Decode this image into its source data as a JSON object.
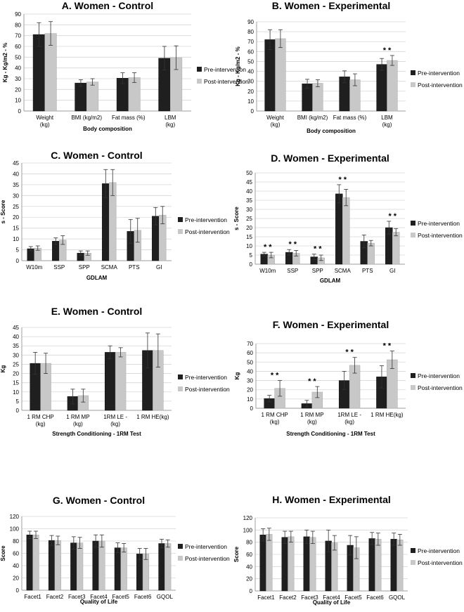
{
  "figure": {
    "series_names": [
      "Pre-intervention",
      "Post-intervention"
    ],
    "series_colors": [
      "#1f1f1f",
      "#c8c8c8"
    ]
  },
  "chart_data": [
    {
      "id": "A",
      "type": "bar",
      "title": "A. Women - Control",
      "xlabel": "Body composition",
      "ylabel": "Kg - Kg/m2 - %",
      "ylim": [
        0,
        90
      ],
      "ystep": 10,
      "categories": [
        "Weight (kg)",
        "BMI (kg/m2)",
        "Fat mass (%)",
        "LBM (kg)"
      ],
      "series": [
        {
          "name": "Pre-intervention",
          "values": [
            71,
            26,
            30.5,
            49
          ],
          "errors": [
            11,
            3,
            5,
            11
          ]
        },
        {
          "name": "Post-intervention",
          "values": [
            72,
            27,
            31,
            49.5
          ],
          "errors": [
            11,
            3,
            4.5,
            11
          ]
        }
      ],
      "annotations": []
    },
    {
      "id": "B",
      "type": "bar",
      "title": "B. Women - Experimental",
      "xlabel": "Body composition",
      "ylabel": "Kg - Kg/m2 - %",
      "ylim": [
        0,
        90
      ],
      "ystep": 10,
      "categories": [
        "Weight (kg)",
        "BMI (kg/m2)",
        "Fat mass (%)",
        "LBM (kg)"
      ],
      "series": [
        {
          "name": "Pre-intervention",
          "values": [
            72,
            27.5,
            34.5,
            47
          ],
          "errors": [
            10,
            4.5,
            6,
            6
          ]
        },
        {
          "name": "Post-intervention",
          "values": [
            73,
            28,
            31.5,
            51
          ],
          "errors": [
            9,
            3.5,
            6,
            5
          ]
        }
      ],
      "annotations": [
        {
          "category": 3,
          "text": "* *"
        }
      ]
    },
    {
      "id": "C",
      "type": "bar",
      "title": "C. Women - Control",
      "xlabel": "GDLAM",
      "ylabel": "s - Score",
      "ylim": [
        0,
        45
      ],
      "ystep": 5,
      "categories": [
        "W10m",
        "SSP",
        "SPP",
        "SCMA",
        "PTS",
        "GI"
      ],
      "series": [
        {
          "name": "Pre-intervention",
          "values": [
            5.5,
            9,
            3.5,
            35.5,
            13.5,
            20.5
          ],
          "errors": [
            1,
            1.5,
            1,
            6.5,
            5.5,
            4
          ]
        },
        {
          "name": "Post-intervention",
          "values": [
            5.8,
            9.5,
            3.5,
            36,
            14,
            21
          ],
          "errors": [
            1,
            2,
            1,
            6,
            5.5,
            4
          ]
        }
      ],
      "annotations": []
    },
    {
      "id": "D",
      "type": "bar",
      "title": "D. Women - Experimental",
      "xlabel": "GDLAM",
      "ylabel": "s - Score",
      "ylim": [
        0,
        50
      ],
      "ystep": 5,
      "categories": [
        "W10m",
        "SSP",
        "SPP",
        "SCMA",
        "PTS",
        "GI"
      ],
      "series": [
        {
          "name": "Pre-intervention",
          "values": [
            5.5,
            6.5,
            4,
            38.5,
            12.5,
            20
          ],
          "errors": [
            1,
            1.5,
            1.5,
            5,
            3.5,
            3.5
          ]
        },
        {
          "name": "Post-intervention",
          "values": [
            5,
            6,
            3.5,
            36.5,
            11.5,
            17.5
          ],
          "errors": [
            1.5,
            1.5,
            1.5,
            4.5,
            1.5,
            2
          ]
        }
      ],
      "annotations": [
        {
          "category": 0,
          "text": "* *"
        },
        {
          "category": 1,
          "text": "* *"
        },
        {
          "category": 2,
          "text": "* *"
        },
        {
          "category": 3,
          "text": "* *"
        },
        {
          "category": 5,
          "text": "* *"
        }
      ]
    },
    {
      "id": "E",
      "type": "bar",
      "title": "E. Women - Control",
      "xlabel": "Strength Conditioning - 1RM Test",
      "ylabel": "Kg",
      "ylim": [
        0,
        45
      ],
      "ystep": 5,
      "categories": [
        "1 RM CHP (kg)",
        "1 RM MP (kg)",
        "1RM LE - (kg)",
        "1 RM HE(kg)"
      ],
      "series": [
        {
          "name": "Pre-intervention",
          "values": [
            25.5,
            7.5,
            31.5,
            32.5
          ],
          "errors": [
            6,
            4,
            3.5,
            9.5
          ]
        },
        {
          "name": "Post-intervention",
          "values": [
            25.5,
            8,
            31.5,
            32.5
          ],
          "errors": [
            5.5,
            3.5,
            2.5,
            9
          ]
        }
      ],
      "annotations": []
    },
    {
      "id": "F",
      "type": "bar",
      "title": "F. Women - Experimental",
      "xlabel": "Strength Conditioning - 1RM Test",
      "ylabel": "Kg",
      "ylim": [
        0,
        70
      ],
      "ystep": 10,
      "categories": [
        "1 RM CHP (kg)",
        "1 RM MP (kg)",
        "1RM LE - (kg)",
        "1 RM HE(kg)"
      ],
      "series": [
        {
          "name": "Pre-intervention",
          "values": [
            10.5,
            5,
            30,
            34
          ],
          "errors": [
            3.5,
            3.5,
            10,
            12
          ]
        },
        {
          "name": "Post-intervention",
          "values": [
            21.5,
            17.5,
            46.5,
            52.5
          ],
          "errors": [
            8.5,
            6,
            8.5,
            9.5
          ]
        }
      ],
      "annotations": [
        {
          "category": 0,
          "text": "*  *"
        },
        {
          "category": 1,
          "text": "*  *"
        },
        {
          "category": 2,
          "text": "* *"
        },
        {
          "category": 3,
          "text": "* *"
        }
      ]
    },
    {
      "id": "G",
      "type": "bar",
      "title": "G. Women - Control",
      "xlabel": "Quality of Life",
      "ylabel": "Score",
      "ylim": [
        0,
        120
      ],
      "ystep": 20,
      "categories": [
        "Facet1",
        "Facet2",
        "Facet3",
        "Facet4",
        "Facet5",
        "Facet6",
        "GQOL"
      ],
      "series": [
        {
          "name": "Pre-intervention",
          "values": [
            90,
            81,
            77,
            80,
            69,
            59,
            76
          ],
          "errors": [
            6,
            8,
            10,
            10,
            8,
            9,
            7
          ]
        },
        {
          "name": "Post-intervention",
          "values": [
            90,
            81,
            77,
            80,
            69,
            59,
            76
          ],
          "errors": [
            6,
            7,
            9,
            10,
            7,
            9,
            6
          ]
        }
      ],
      "annotations": []
    },
    {
      "id": "H",
      "type": "bar",
      "title": "H. Women - Experimental",
      "xlabel": "Quality of Life",
      "ylabel": "Score",
      "ylim": [
        0,
        120
      ],
      "ystep": 20,
      "categories": [
        "Facet1",
        "Facet2",
        "Facet3",
        "Facet4",
        "Facet5",
        "Facet6",
        "GQOL"
      ],
      "series": [
        {
          "name": "Pre-intervention",
          "values": [
            92,
            88,
            89,
            82,
            75,
            86,
            85
          ],
          "errors": [
            10,
            10,
            11,
            18,
            16,
            10,
            10
          ]
        },
        {
          "name": "Post-intervention",
          "values": [
            93,
            89,
            88,
            79,
            71,
            85,
            84
          ],
          "errors": [
            10,
            9,
            10,
            12,
            18,
            10,
            9
          ]
        }
      ],
      "annotations": []
    }
  ]
}
